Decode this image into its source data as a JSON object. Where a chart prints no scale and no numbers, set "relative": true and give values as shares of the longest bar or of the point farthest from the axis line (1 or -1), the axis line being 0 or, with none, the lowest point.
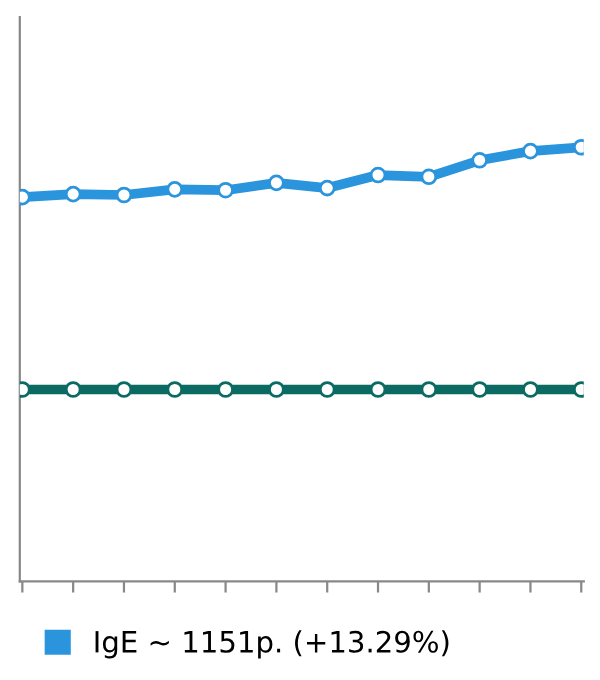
{
  "chart_data": {
    "type": "line",
    "relative": true,
    "categories": [
      null,
      null,
      null,
      null,
      null,
      null,
      null,
      null,
      null,
      null,
      null,
      null
    ],
    "series": [
      {
        "name": "IgE ~ 1151р. (+13.29%)",
        "color": "#2a95dc",
        "values": [
          0.885,
          0.892,
          0.89,
          0.903,
          0.901,
          0.918,
          0.906,
          0.936,
          0.932,
          0.97,
          0.991,
          1.0
        ]
      },
      {
        "color": "#0b6b63",
        "values": [
          0.442,
          0.442,
          0.442,
          0.442,
          0.442,
          0.442,
          0.442,
          0.442,
          0.442,
          0.442,
          0.442,
          0.442
        ]
      }
    ],
    "marker": "circle",
    "line_style": "solid",
    "legend": "bottom"
  }
}
